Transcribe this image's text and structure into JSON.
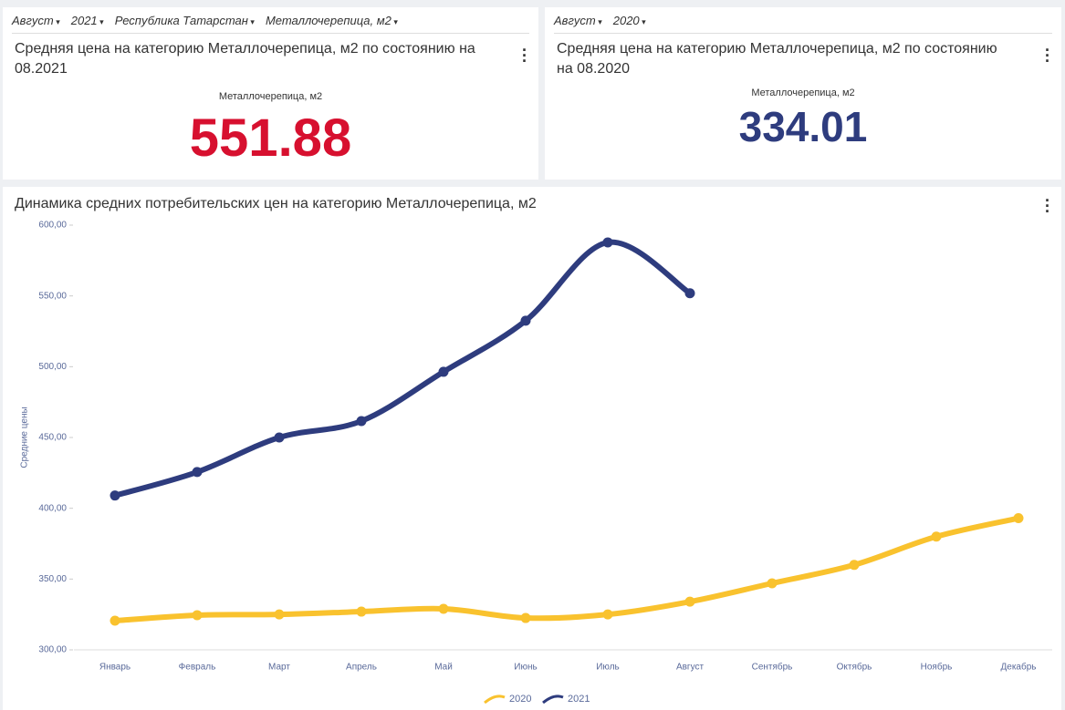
{
  "cards": [
    {
      "filters": [
        "Август",
        "2021",
        "Республика Татарстан",
        "Металлочерепица, м2"
      ],
      "title": "Средняя цена на категорию Металлочерепица, м2 по состоянию на 08.2021",
      "kpi_label": "Металлочерепица, м2",
      "kpi_value": 551.88,
      "kpi_color": "#d7102f"
    },
    {
      "filters": [
        "Август",
        "2020"
      ],
      "title": "Средняя цена на категорию Металлочерепица, м2 по состоянию на 08.2020",
      "kpi_label": "Металлочерепица, м2",
      "kpi_value": 334.01,
      "kpi_color": "#2e3c7e"
    }
  ],
  "chart_data": {
    "type": "line",
    "title": "Динамика средних потребительских цен на категорию Металлочерепица, м2",
    "y_label": "Средние цены",
    "categories": [
      "Январь",
      "Февраль",
      "Март",
      "Апрель",
      "Май",
      "Июнь",
      "Июль",
      "Август",
      "Сентябрь",
      "Октябрь",
      "Ноябрь",
      "Декабрь"
    ],
    "series": [
      {
        "name": "2020",
        "color": "#f9c22e",
        "values": [
          320.6,
          324.5,
          325,
          327,
          329,
          322.5,
          325,
          334.01,
          347,
          360,
          380,
          393
        ]
      },
      {
        "name": "2021",
        "color": "#2e3c7e",
        "values": [
          409,
          425.6,
          450,
          461.6,
          496.4,
          532.5,
          587.8,
          551.88,
          null,
          null,
          null,
          null
        ]
      }
    ],
    "ylim": [
      300,
      600
    ],
    "yticks": [
      {
        "value": 300,
        "label": "300,00"
      },
      {
        "value": 350,
        "label": "350,00"
      },
      {
        "value": 400,
        "label": "400,00"
      },
      {
        "value": 450,
        "label": "450,00"
      },
      {
        "value": 500,
        "label": "500,00"
      },
      {
        "value": 550,
        "label": "550,00"
      },
      {
        "value": 600,
        "label": "600,00"
      }
    ],
    "grid": false,
    "legend": "bottom"
  }
}
